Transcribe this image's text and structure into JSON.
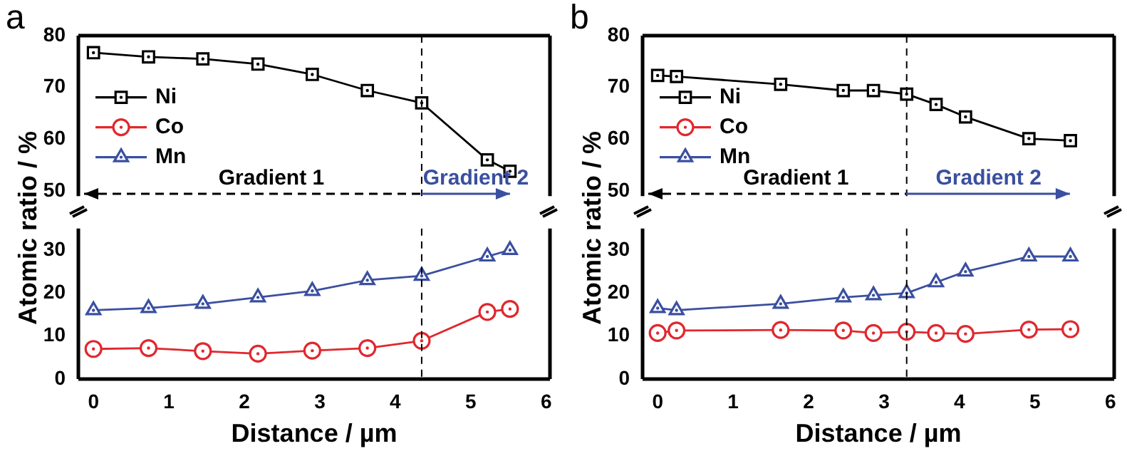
{
  "chart_data": [
    {
      "type": "line",
      "title": "a",
      "ylabel": "Atomic ratio / %",
      "x": [
        0,
        0.73,
        1.45,
        2.18,
        2.9,
        3.63,
        4.35,
        5.22,
        5.52
      ],
      "xlim": [
        -0.2,
        6.05
      ],
      "ylim": [
        49,
        80
      ],
      "yticks": [
        50,
        60,
        70,
        80
      ],
      "tick_labels": "y",
      "legend": "left",
      "series": [
        {
          "name": "Ni",
          "color": "#000000",
          "marker": "square",
          "values": [
            76.7,
            75.9,
            75.5,
            74.5,
            72.5,
            69.4,
            67.0,
            56.0,
            53.8
          ]
        },
        {
          "name": "Co",
          "color": "#e0282e",
          "marker": "circle",
          "values": [
            null,
            null,
            null,
            null,
            null,
            null,
            null,
            null,
            null
          ]
        },
        {
          "name": "Mn",
          "color": "#3a4fa0",
          "marker": "triangle",
          "values": [
            null,
            null,
            null,
            null,
            null,
            null,
            null,
            null,
            null
          ]
        }
      ],
      "ref_lines": [
        {
          "axis": "x",
          "value": 4.35,
          "color": "#000000",
          "line_style": "dashed"
        }
      ],
      "annotations": [
        "Gradient 1",
        "Gradient 2"
      ]
    },
    {
      "type": "line",
      "xlabel": "Distance / µm",
      "x": [
        0,
        0.73,
        1.45,
        2.18,
        2.9,
        3.63,
        4.35,
        5.22,
        5.52
      ],
      "xlim": [
        -0.2,
        6.05
      ],
      "xticks": [
        0,
        1,
        2,
        3,
        4,
        5,
        6
      ],
      "ylim": [
        0,
        35
      ],
      "yticks": [
        0,
        10,
        20,
        30
      ],
      "series": [
        {
          "color": "#e0282e",
          "marker": "circle",
          "values": [
            7.0,
            7.2,
            6.5,
            5.9,
            6.6,
            7.2,
            8.9,
            15.6,
            16.3
          ]
        },
        {
          "color": "#3a4fa0",
          "marker": "triangle",
          "values": [
            16,
            16.5,
            17.5,
            19,
            20.5,
            23,
            24,
            28.5,
            30
          ]
        }
      ],
      "ref_lines": [
        {
          "axis": "x",
          "value": 4.35,
          "color": "#000000",
          "line_style": "dashed"
        }
      ]
    },
    {
      "type": "line",
      "title": "b",
      "ylabel": "Atomic ratio / %",
      "x": [
        0,
        0.25,
        1.63,
        2.46,
        2.86,
        3.3,
        3.69,
        4.08,
        4.92,
        5.47
      ],
      "xlim": [
        -0.2,
        6.05
      ],
      "ylim": [
        49,
        80
      ],
      "yticks": [
        50,
        60,
        70,
        80
      ],
      "tick_labels": "y",
      "legend": "left",
      "series": [
        {
          "name": "Ni",
          "color": "#000000",
          "marker": "square",
          "values": [
            72.3,
            72.1,
            70.6,
            69.4,
            69.4,
            68.7,
            66.7,
            64.3,
            60.1,
            59.7
          ]
        },
        {
          "name": "Co",
          "color": "#e0282e",
          "marker": "circle",
          "values": [
            null,
            null,
            null,
            null,
            null,
            null,
            null,
            null,
            null,
            null
          ]
        },
        {
          "name": "Mn",
          "color": "#3a4fa0",
          "marker": "triangle",
          "values": [
            null,
            null,
            null,
            null,
            null,
            null,
            null,
            null,
            null,
            null
          ]
        }
      ],
      "ref_lines": [
        {
          "axis": "x",
          "value": 3.3,
          "color": "#000000",
          "line_style": "dashed"
        }
      ],
      "annotations": [
        "Gradient 1",
        "Gradient 2"
      ]
    },
    {
      "type": "line",
      "xlabel": "Distance / µm",
      "x": [
        0,
        0.25,
        1.63,
        2.46,
        2.86,
        3.3,
        3.69,
        4.08,
        4.92,
        5.47
      ],
      "xlim": [
        -0.2,
        6.05
      ],
      "xticks": [
        0,
        1,
        2,
        3,
        4,
        5,
        6
      ],
      "ylim": [
        0,
        35
      ],
      "yticks": [
        0,
        10,
        20,
        30
      ],
      "series": [
        {
          "color": "#e0282e",
          "marker": "circle",
          "values": [
            10.7,
            11.3,
            11.4,
            11.3,
            10.7,
            11.0,
            10.7,
            10.5,
            11.5,
            11.6
          ]
        },
        {
          "color": "#3a4fa0",
          "marker": "triangle",
          "values": [
            16.5,
            16,
            17.5,
            19,
            19.5,
            20,
            22.5,
            25,
            28.5,
            28.5
          ]
        }
      ],
      "ref_lines": [
        {
          "axis": "x",
          "value": 3.3,
          "color": "#000000",
          "line_style": "dashed"
        }
      ]
    }
  ]
}
